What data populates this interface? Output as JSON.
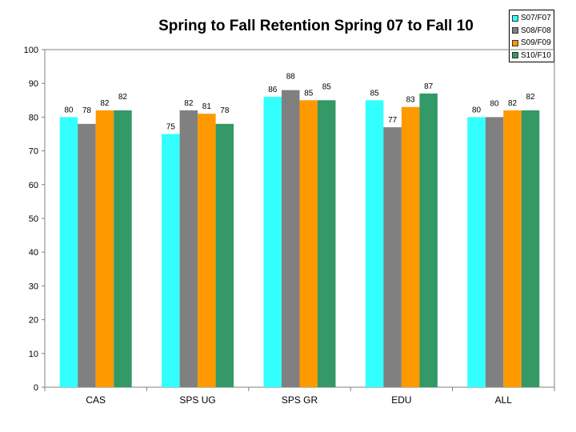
{
  "chart_data": {
    "type": "bar",
    "title": "Spring to Fall Retention Spring 07 to Fall 10",
    "categories": [
      "CAS",
      "SPS UG",
      "SPS GR",
      "EDU",
      "ALL"
    ],
    "series": [
      {
        "name": "S07/F07",
        "color": "#33ffff",
        "values": [
          80,
          75,
          86,
          85,
          80
        ]
      },
      {
        "name": "S08/F08",
        "color": "#808080",
        "values": [
          78,
          82,
          88,
          77,
          80
        ]
      },
      {
        "name": "S09/F09",
        "color": "#ff9900",
        "values": [
          82,
          81,
          85,
          83,
          82
        ]
      },
      {
        "name": "S10/F10",
        "color": "#339966",
        "values": [
          82,
          78,
          85,
          87,
          82
        ]
      }
    ],
    "y_ticks": [
      0,
      10,
      20,
      30,
      40,
      50,
      60,
      70,
      80,
      90,
      100
    ],
    "ylim": [
      0,
      100
    ],
    "xlabel": "",
    "ylabel": "",
    "legend_position": "top-right",
    "grid": false,
    "data_labels": true
  }
}
